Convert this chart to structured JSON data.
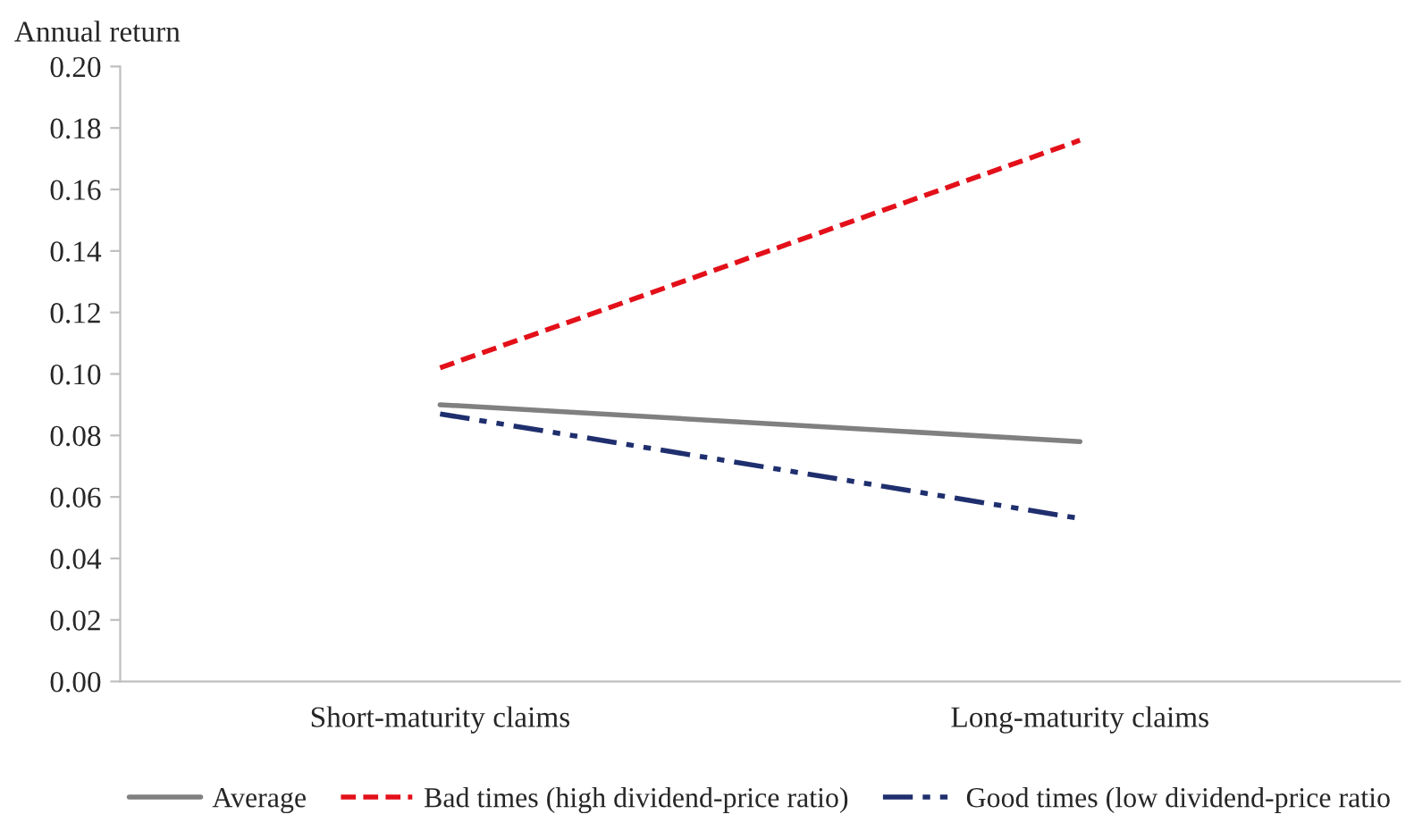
{
  "chart_data": {
    "type": "line",
    "ylabel": "Annual return",
    "categories": [
      "Short-maturity claims",
      "Long-maturity claims"
    ],
    "series": [
      {
        "name": "Average",
        "color": "#808080",
        "values": [
          0.09,
          0.078
        ],
        "line_style": "solid"
      },
      {
        "name": "Bad times (high dividend-price ratio)",
        "color": "#e3101a",
        "values": [
          0.102,
          0.176
        ],
        "line_style": "dashed"
      },
      {
        "name": "Good times (low dividend-price ratio",
        "color": "#1f2f6e",
        "values": [
          0.087,
          0.053
        ],
        "line_style": "dashdot"
      }
    ],
    "ylim": [
      0,
      0.2
    ],
    "yticks": [
      {
        "value": 0,
        "label": "0.00"
      },
      {
        "value": 0.02,
        "label": "0.02"
      },
      {
        "value": 0.04,
        "label": "0.04"
      },
      {
        "value": 0.06,
        "label": "0.06"
      },
      {
        "value": 0.08,
        "label": "0.08"
      },
      {
        "value": 0.1,
        "label": "0.10"
      },
      {
        "value": 0.12,
        "label": "0.12"
      },
      {
        "value": 0.14,
        "label": "0.14"
      },
      {
        "value": 0.16,
        "label": "0.16"
      },
      {
        "value": 0.18,
        "label": "0.18"
      },
      {
        "value": 0.2,
        "label": "0.20"
      }
    ],
    "grid": false,
    "legend": "bottom",
    "marker": "none"
  }
}
